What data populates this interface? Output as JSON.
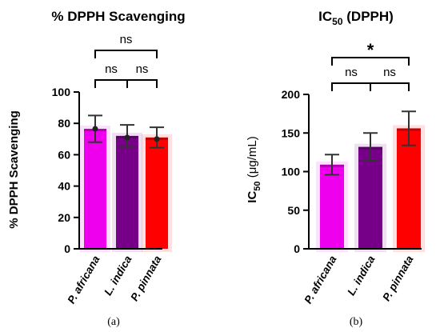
{
  "chart_data": [
    {
      "type": "bar",
      "panel_label": "(a)",
      "title": "% DPPH Scavenging",
      "xlabel": "",
      "ylabel": "% DPPH Scavenging",
      "ylim": [
        0,
        100
      ],
      "yticks": [
        0,
        20,
        40,
        60,
        80,
        100
      ],
      "categories": [
        "P. africana",
        "L. indica",
        "P. pinnata"
      ],
      "values": [
        76.5,
        72,
        71
      ],
      "errors": [
        8.5,
        7,
        6.5
      ],
      "points": [
        76.5,
        71,
        70
      ],
      "colors": [
        "#ee00ee",
        "#770088",
        "#ff0000"
      ],
      "comparisons": [
        {
          "from": 0,
          "to": 1,
          "label": "ns"
        },
        {
          "from": 1,
          "to": 2,
          "label": "ns"
        },
        {
          "from": 0,
          "to": 2,
          "label": "ns"
        }
      ]
    },
    {
      "type": "bar",
      "panel_label": "(b)",
      "title_main": "IC",
      "title_sub": "50",
      "title_rest": " (DPPH)",
      "xlabel": "",
      "ylabel_main": "IC",
      "ylabel_sub": "50",
      "ylabel_rest": " (μg/mL)",
      "ylim": [
        0,
        200
      ],
      "yticks": [
        0,
        50,
        100,
        150,
        200
      ],
      "categories": [
        "P. africana",
        "L. indica",
        "P. pinnata"
      ],
      "values": [
        109,
        132,
        156
      ],
      "errors": [
        13,
        18,
        22
      ],
      "colors": [
        "#ee00ee",
        "#770088",
        "#ff0000"
      ],
      "comparisons": [
        {
          "from": 0,
          "to": 1,
          "label": "ns"
        },
        {
          "from": 1,
          "to": 2,
          "label": "ns"
        },
        {
          "from": 0,
          "to": 2,
          "label": "*"
        }
      ]
    }
  ]
}
